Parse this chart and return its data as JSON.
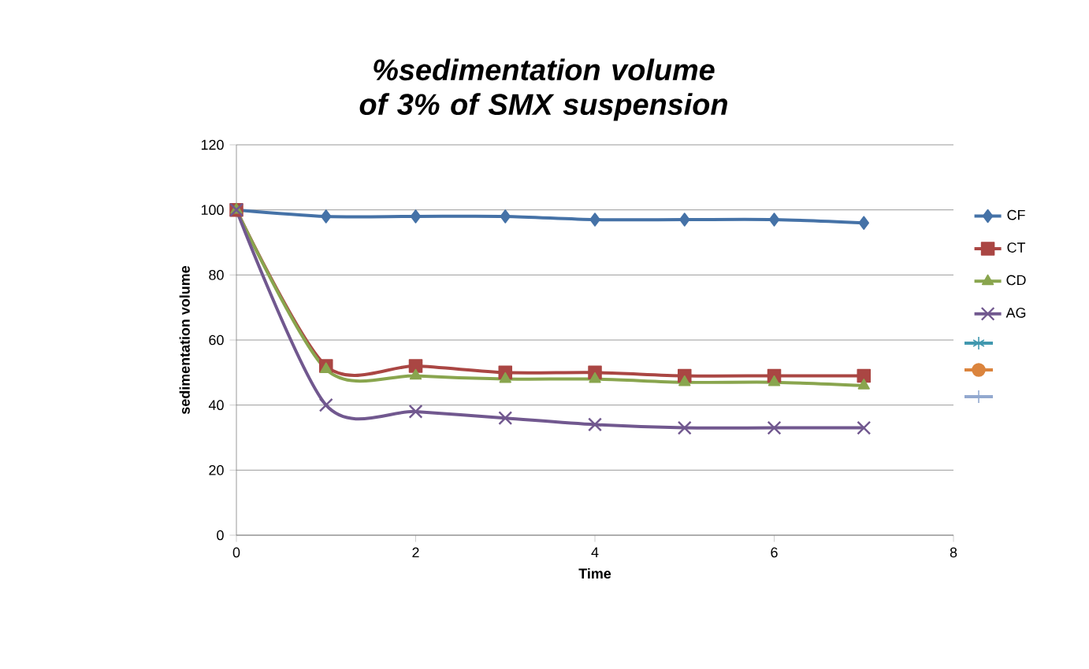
{
  "chart_data": {
    "type": "line",
    "title": "%sedimentation volume of 3% of SMX suspension",
    "xlabel": "Time",
    "ylabel": "sedimentation volume",
    "x": [
      0,
      1,
      2,
      3,
      4,
      5,
      6,
      7
    ],
    "xlim": [
      0,
      8
    ],
    "xticks": [
      0,
      2,
      4,
      6,
      8
    ],
    "ylim": [
      0,
      120
    ],
    "yticks": [
      0,
      20,
      40,
      60,
      80,
      100,
      120
    ],
    "grid": "y",
    "legend": "right",
    "series": [
      {
        "name": "CF",
        "color": "#4572a7",
        "marker": "diamond",
        "values": [
          100,
          98,
          98,
          98,
          97,
          97,
          97,
          96
        ]
      },
      {
        "name": "CT",
        "color": "#aa4643",
        "marker": "square",
        "values": [
          100,
          52,
          52,
          50,
          50,
          49,
          49,
          49
        ]
      },
      {
        "name": "CD",
        "color": "#89a54e",
        "marker": "triangle",
        "values": [
          100,
          51,
          49,
          48,
          48,
          47,
          47,
          46
        ]
      },
      {
        "name": "AG",
        "color": "#71588f",
        "marker": "cross",
        "values": [
          100,
          40,
          38,
          36,
          34,
          33,
          33,
          33
        ]
      },
      {
        "color": "#4198af",
        "marker": "star",
        "values": [
          null,
          null,
          null,
          null,
          null,
          null,
          null,
          null
        ]
      },
      {
        "color": "#db843d",
        "marker": "circle",
        "values": [
          null,
          null,
          null,
          null,
          null,
          null,
          null,
          null
        ]
      },
      {
        "color": "#93a9cf",
        "marker": "plus",
        "values": [
          null,
          null,
          null,
          null,
          null,
          null,
          null,
          null
        ]
      }
    ]
  }
}
